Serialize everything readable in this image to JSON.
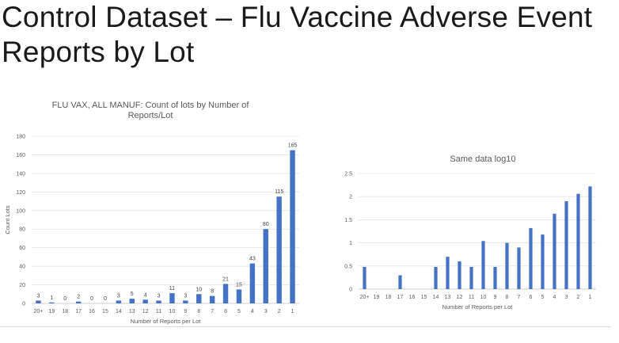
{
  "slide": {
    "title": "Control Dataset – Flu Vaccine Adverse Event Reports by Lot"
  },
  "chart_data": [
    {
      "type": "bar",
      "title": "FLU VAX, ALL MANUF: Count of lots by Number of Reports/Lot",
      "title_lines": [
        "FLU VAX, ALL MANUF: Count of lots by Number of",
        "Reports/Lot"
      ],
      "xlabel": "Number of Reports per Lot",
      "ylabel": "Count Lots",
      "categories": [
        "20+",
        "19",
        "18",
        "17",
        "16",
        "15",
        "14",
        "13",
        "12",
        "11",
        "10",
        "9",
        "8",
        "7",
        "6",
        "5",
        "4",
        "3",
        "2",
        "1"
      ],
      "values": [
        3,
        1,
        0,
        2,
        0,
        0,
        3,
        5,
        4,
        3,
        11,
        3,
        10,
        8,
        21,
        15,
        43,
        80,
        115,
        165
      ],
      "ylim": [
        0,
        180
      ],
      "yticks": [
        0,
        20,
        40,
        60,
        80,
        100,
        120,
        140,
        160,
        180
      ],
      "data_labels": true,
      "grid": true,
      "color": "#4472c4"
    },
    {
      "type": "bar",
      "title": "Same data log10",
      "xlabel": "Number of Reports per Lot",
      "ylabel": "",
      "categories": [
        "20+",
        "19",
        "18",
        "17",
        "16",
        "15",
        "14",
        "13",
        "12",
        "11",
        "10",
        "9",
        "8",
        "7",
        "6",
        "5",
        "4",
        "3",
        "2",
        "1"
      ],
      "values": [
        0.48,
        0,
        0,
        0.3,
        0,
        0,
        0.48,
        0.7,
        0.6,
        0.48,
        1.04,
        0.48,
        1.0,
        0.9,
        1.32,
        1.18,
        1.63,
        1.9,
        2.06,
        2.22
      ],
      "ylim": [
        0,
        2.5
      ],
      "yticks": [
        "0",
        "0.5",
        "1",
        "1.5",
        "2",
        "2.5"
      ],
      "data_labels": false,
      "grid": true,
      "color": "#4472c4"
    }
  ]
}
